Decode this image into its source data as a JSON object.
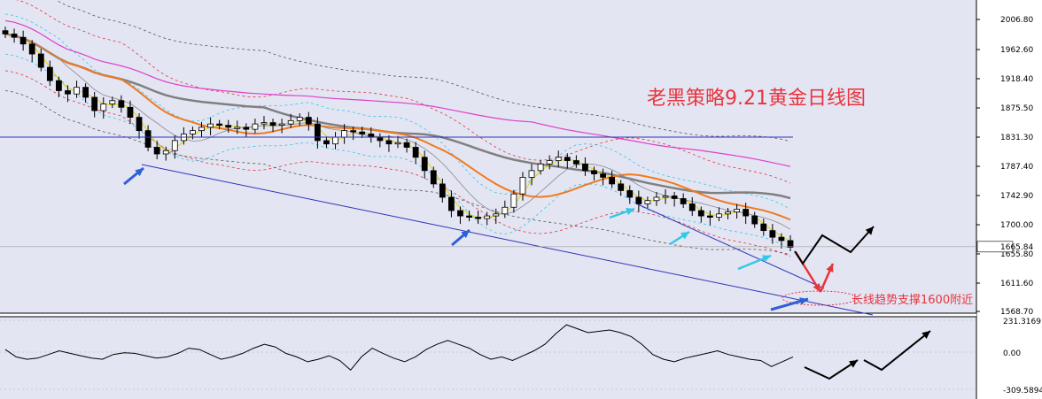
{
  "chart_data": [
    {
      "type": "candlestick",
      "title": "老黑策略9.21黄金日线图",
      "annotation": "长线趋势支撑1600附近",
      "current_price_label": "1665.84",
      "y_tick_labels": [
        "2006.80",
        "1962.60",
        "1918.40",
        "1875.50",
        "1831.30",
        "1787.40",
        "1742.90",
        "1700.00",
        "1655.80",
        "1611.60",
        "1568.70"
      ],
      "ylim": [
        1560,
        2015
      ],
      "current_price": 1665.84,
      "close_series": [
        1985,
        1980,
        1970,
        1955,
        1935,
        1915,
        1900,
        1895,
        1905,
        1890,
        1870,
        1880,
        1885,
        1875,
        1860,
        1840,
        1815,
        1805,
        1810,
        1825,
        1835,
        1840,
        1845,
        1850,
        1848,
        1845,
        1845,
        1842,
        1850,
        1852,
        1848,
        1850,
        1855,
        1860,
        1850,
        1825,
        1820,
        1830,
        1840,
        1838,
        1835,
        1830,
        1825,
        1820,
        1822,
        1815,
        1800,
        1780,
        1760,
        1740,
        1720,
        1712,
        1710,
        1708,
        1712,
        1715,
        1725,
        1745,
        1770,
        1780,
        1790,
        1795,
        1800,
        1795,
        1790,
        1780,
        1775,
        1770,
        1760,
        1750,
        1740,
        1730,
        1735,
        1740,
        1742,
        1738,
        1730,
        1720,
        1712,
        1710,
        1715,
        1718,
        1722,
        1712,
        1700,
        1690,
        1680,
        1675,
        1665
      ],
      "support_level": 1600,
      "colors": {
        "background": "#e3e5f3",
        "ema_fast": "#f07a1e",
        "ema_slow": "#808080",
        "upper_ma": "#e040c8",
        "trend_line": "#2e34b8",
        "bullish_arrow": "#2e5fd6",
        "cyan_arrow": "#34c8e6",
        "red_path": "#e8343c"
      }
    },
    {
      "type": "line",
      "y_tick_labels": [
        "231.3169",
        "0.00",
        "-309.5894"
      ],
      "ylim": [
        -309.5894,
        231.3169
      ],
      "values": [
        20,
        -40,
        -60,
        -50,
        -20,
        10,
        -10,
        -30,
        -50,
        -60,
        -20,
        -5,
        -10,
        -30,
        -50,
        -40,
        -10,
        30,
        20,
        -20,
        -60,
        -40,
        -10,
        30,
        60,
        40,
        -10,
        -40,
        -80,
        -60,
        -30,
        -70,
        -150,
        -40,
        30,
        -10,
        -50,
        -80,
        -40,
        20,
        60,
        90,
        60,
        30,
        -20,
        -60,
        -40,
        -70,
        -30,
        10,
        60,
        140,
        210,
        180,
        150,
        160,
        170,
        150,
        120,
        60,
        -20,
        -60,
        -80,
        -50,
        -30,
        -10,
        10,
        -20,
        -40,
        -60,
        -70,
        -120,
        -80,
        -40
      ]
    }
  ]
}
